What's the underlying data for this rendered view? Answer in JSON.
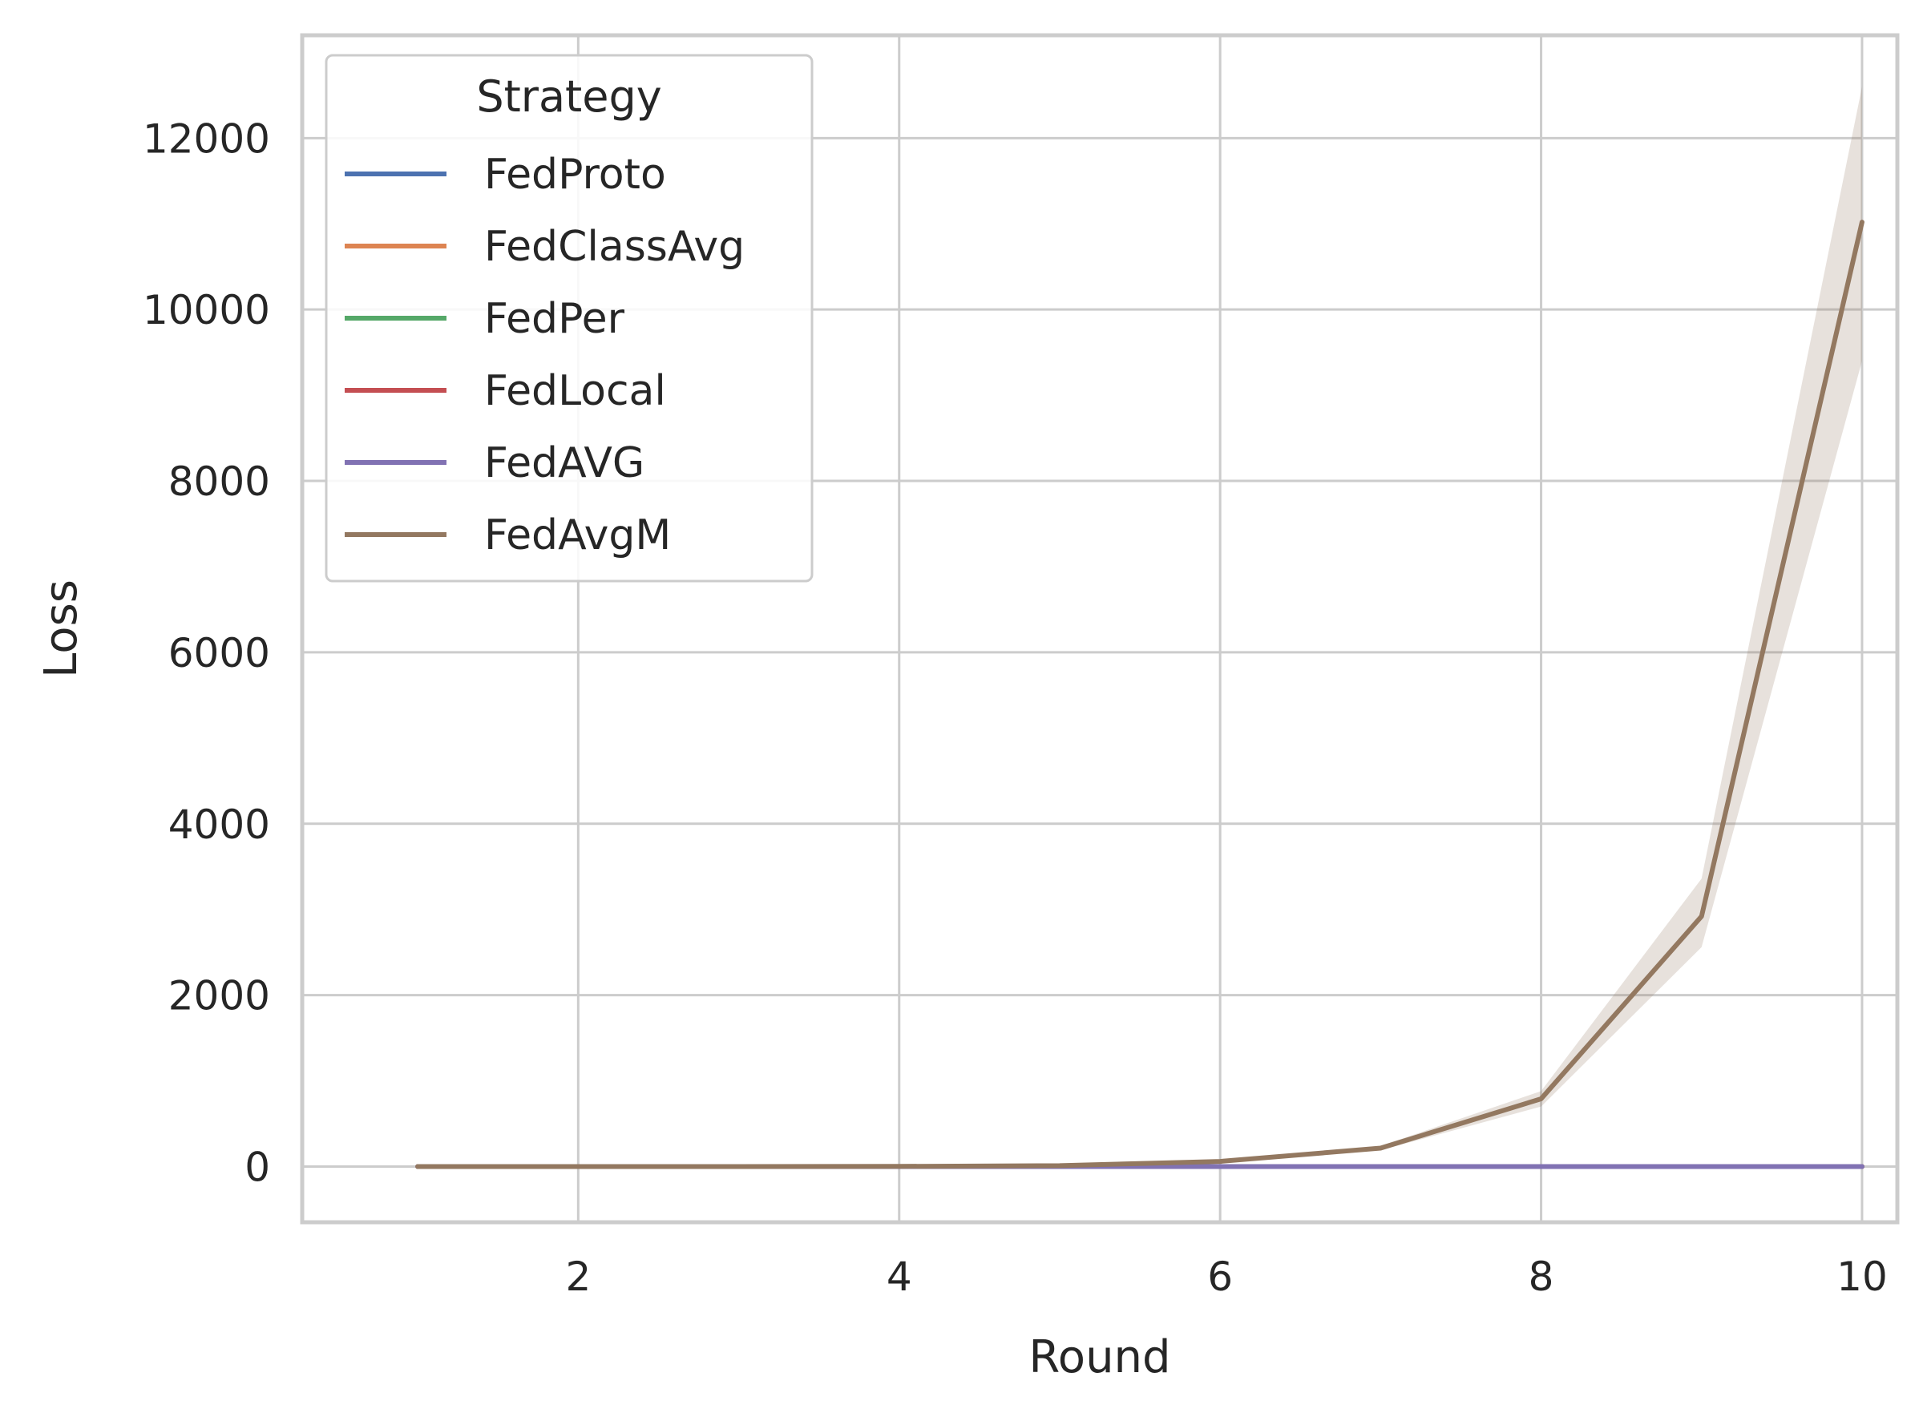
{
  "chart_data": {
    "type": "line",
    "xlabel": "Round",
    "ylabel": "Loss",
    "x": [
      1,
      2,
      3,
      4,
      5,
      6,
      7,
      8,
      9,
      10
    ],
    "xlim": [
      0.28,
      10.22
    ],
    "ylim": [
      -650,
      13200
    ],
    "xticks": [
      2,
      4,
      6,
      8,
      10
    ],
    "yticks": [
      0,
      2000,
      4000,
      6000,
      8000,
      10000,
      12000
    ],
    "grid": true,
    "legend": {
      "title": "Strategy",
      "placement": "top-left"
    },
    "series": [
      {
        "name": "FedProto",
        "color": "#4c72b0",
        "values": [
          0,
          0,
          0,
          0,
          0,
          0,
          0,
          0,
          0,
          0
        ]
      },
      {
        "name": "FedClassAvg",
        "color": "#dd8452",
        "values": [
          0,
          0,
          0,
          0,
          0,
          0,
          0,
          0,
          0,
          0
        ]
      },
      {
        "name": "FedPer",
        "color": "#55a868",
        "values": [
          0,
          0,
          0,
          0,
          0,
          0,
          0,
          0,
          0,
          0
        ]
      },
      {
        "name": "FedLocal",
        "color": "#c44e52",
        "values": [
          0,
          0,
          0,
          0,
          0,
          0,
          0,
          0,
          0,
          0
        ]
      },
      {
        "name": "FedAVG",
        "color": "#8172b3",
        "values": [
          0,
          0,
          0,
          0,
          0,
          0,
          0,
          0,
          0,
          0
        ]
      },
      {
        "name": "FedAvgM",
        "color": "#937860",
        "values": [
          0,
          0,
          0,
          2,
          10,
          60,
          215,
          790,
          2920,
          11020
        ],
        "ci_lower": [
          0,
          0,
          0,
          1,
          8,
          50,
          190,
          700,
          2560,
          9400
        ],
        "ci_upper": [
          0,
          0,
          0,
          3,
          13,
          72,
          240,
          880,
          3360,
          12600
        ]
      }
    ]
  }
}
